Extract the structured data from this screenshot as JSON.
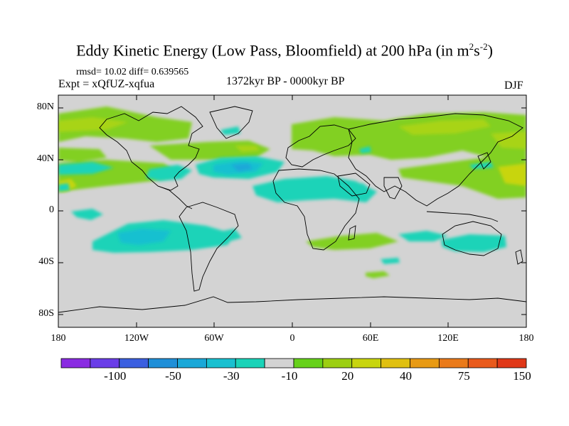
{
  "title": "Eddy Kinetic Energy (Low Pass, Bloomfield) at 200 hPa (in m",
  "title_exp1": "2",
  "title_mid": "s",
  "title_exp2": "-2",
  "title_end": ")",
  "stats": "rmsd= 10.02 diff= 0.639565",
  "experiment": "Expt = xQfUZ-xqfua",
  "period": "1372kyr BP - 0000kyr BP",
  "season": "DJF",
  "y_axis": {
    "labels": [
      "80N",
      "40N",
      "0",
      "40S",
      "80S"
    ]
  },
  "x_axis": {
    "labels": [
      "180",
      "120W",
      "60W",
      "0",
      "60E",
      "120E",
      "180"
    ]
  },
  "colorbar": {
    "colors": [
      "#8a2be2",
      "#6a3de8",
      "#3b5fe0",
      "#1f8fd8",
      "#1aa8d8",
      "#19c0d0",
      "#1ad3b8",
      "#d3d3d3",
      "#66d11a",
      "#9ccf12",
      "#c8d50e",
      "#e0c010",
      "#e89a14",
      "#ea7a1a",
      "#e95a1c",
      "#e03818"
    ],
    "labels": [
      "-100",
      "-50",
      "-30",
      "-10",
      "20",
      "40",
      "75",
      "150"
    ]
  },
  "map_colors": {
    "land_sea": "#d3d3d3",
    "green": "#82d024",
    "lightgreen": "#a8d418",
    "yellow": "#c8d50e",
    "cyan": "#1ad3b8",
    "teal": "#19c0d0",
    "blue": "#1aa8d8"
  }
}
